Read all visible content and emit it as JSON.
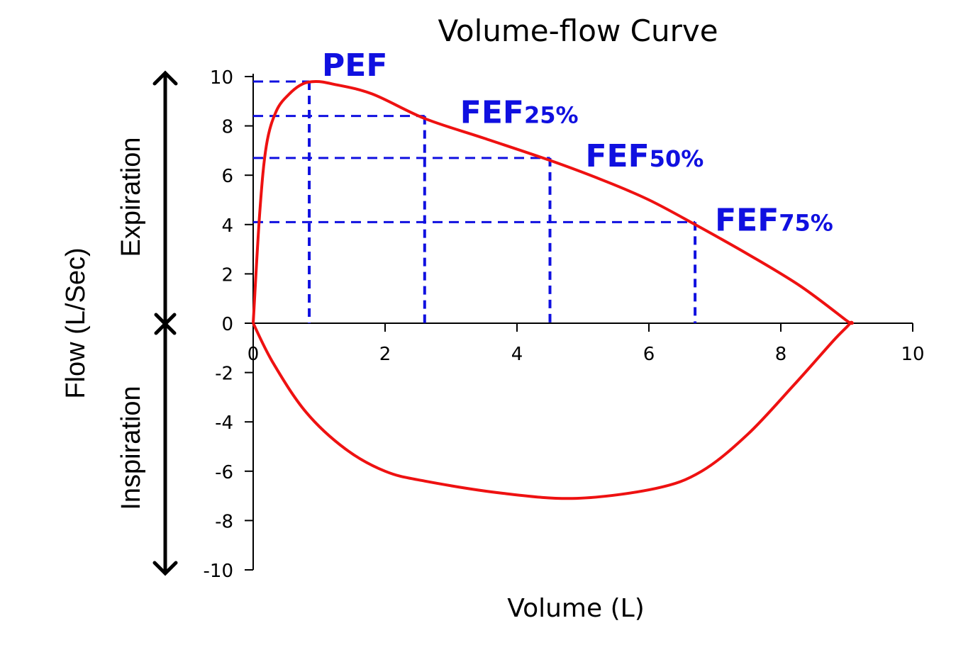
{
  "chart_data": {
    "type": "line",
    "title": "Volume-flow Curve",
    "xlabel": "Volume (L)",
    "ylabel": "Flow (L/Sec)",
    "xlim": [
      0,
      10
    ],
    "ylim": [
      -10,
      10
    ],
    "x_ticks": [
      "0",
      "2",
      "4",
      "6",
      "8",
      "10"
    ],
    "y_ticks": [
      "10",
      "8",
      "6",
      "4",
      "2",
      "0",
      "-2",
      "-4",
      "-6",
      "-8",
      "-10"
    ],
    "grid": false,
    "legend": "none",
    "colors": {
      "curve": "#ee1111",
      "guides": "#1010e0",
      "axes": "#000000"
    },
    "series": [
      {
        "points": [
          [
            0,
            0
          ],
          [
            0.1,
            4.5
          ],
          [
            0.2,
            7.2
          ],
          [
            0.35,
            8.6
          ],
          [
            0.55,
            9.3
          ],
          [
            0.75,
            9.7
          ],
          [
            0.95,
            9.8
          ],
          [
            1.2,
            9.7
          ],
          [
            1.8,
            9.3
          ],
          [
            2.6,
            8.3
          ],
          [
            3.5,
            7.5
          ],
          [
            4.5,
            6.6
          ],
          [
            5.3,
            5.8
          ],
          [
            6.0,
            5.0
          ],
          [
            6.7,
            4.0
          ],
          [
            7.5,
            2.8
          ],
          [
            8.3,
            1.5
          ],
          [
            9.0,
            0.1
          ],
          [
            9.05,
            0
          ],
          [
            8.8,
            -0.7
          ],
          [
            8.2,
            -2.5
          ],
          [
            7.5,
            -4.5
          ],
          [
            6.8,
            -6.0
          ],
          [
            6.1,
            -6.7
          ],
          [
            4.9,
            -7.1
          ],
          [
            3.8,
            -6.9
          ],
          [
            2.6,
            -6.4
          ],
          [
            2.0,
            -6.0
          ],
          [
            1.4,
            -5.1
          ],
          [
            0.8,
            -3.6
          ],
          [
            0.3,
            -1.6
          ],
          [
            0,
            0
          ]
        ]
      }
    ],
    "annotations": [
      {
        "name": "pef",
        "main": "PEF",
        "sub": "",
        "x": 0.85,
        "y": 9.8
      },
      {
        "name": "fef25",
        "main": "FEF",
        "sub": "25%",
        "x": 2.6,
        "y": 8.4
      },
      {
        "name": "fef50",
        "main": "FEF",
        "sub": "50%",
        "x": 4.5,
        "y": 6.7
      },
      {
        "name": "fef75",
        "main": "FEF",
        "sub": "75%",
        "x": 6.7,
        "y": 4.1
      }
    ],
    "side_labels": {
      "upper": "Expiration",
      "lower": "Inspiration"
    }
  }
}
